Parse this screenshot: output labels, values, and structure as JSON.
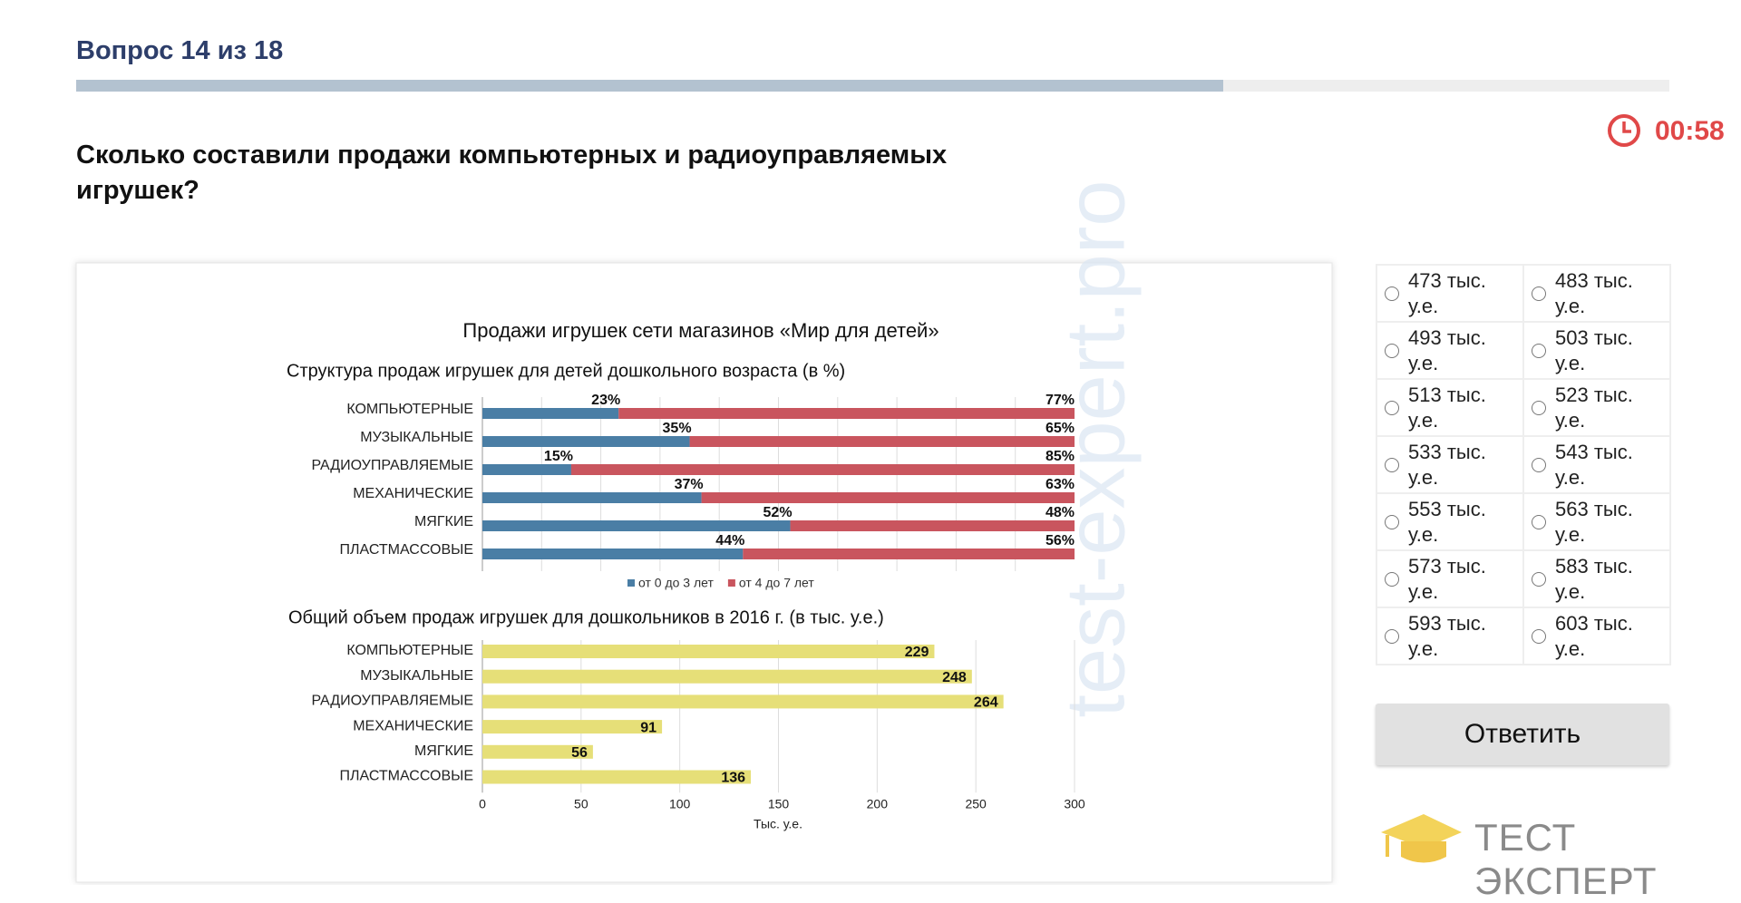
{
  "header": {
    "title": "Вопрос 14 из 18"
  },
  "timer": "00:58",
  "question": "Сколько составили продажи компьютерных и радиоуправляемых игрушек?",
  "watermark": "test-expert.pro",
  "chart_data": [
    {
      "type": "stacked-bar-horizontal",
      "title": "Продажи игрушек сети магазинов «Мир для детей»",
      "subtitle": "Структура продаж игрушек для детей дошкольного возраста (в %)",
      "categories": [
        "КОМПЬЮТЕРНЫЕ",
        "МУЗЫКАЛЬНЫЕ",
        "РАДИОУПРАВЛЯЕМЫЕ",
        "МЕХАНИЧЕСКИЕ",
        "МЯГКИЕ",
        "ПЛАСТМАССОВЫЕ"
      ],
      "series": [
        {
          "name": "от 0 до 3 лет",
          "color": "#4a7ea5",
          "values": [
            23,
            35,
            15,
            37,
            52,
            44
          ],
          "value_labels": [
            "23%",
            "35%",
            "15%",
            "37%",
            "52%",
            "44%"
          ]
        },
        {
          "name": "от 4 до 7 лет",
          "color": "#c9555e",
          "values": [
            77,
            65,
            85,
            63,
            48,
            56
          ],
          "value_labels": [
            "77%",
            "65%",
            "85%",
            "63%",
            "48%",
            "56%"
          ]
        }
      ],
      "xlim": [
        0,
        100
      ]
    },
    {
      "type": "bar-horizontal",
      "title": "Общий объем продаж игрушек для дошкольников в 2016 г. (в тыс. у.е.)",
      "categories": [
        "КОМПЬЮТЕРНЫЕ",
        "МУЗЫКАЛЬНЫЕ",
        "РАДИОУПРАВЛЯЕМЫЕ",
        "МЕХАНИЧЕСКИЕ",
        "МЯГКИЕ",
        "ПЛАСТМАССОВЫЕ"
      ],
      "values": [
        229,
        248,
        264,
        91,
        56,
        136
      ],
      "color": "#e6df78",
      "xlim": [
        0,
        300
      ],
      "xticks": [
        0,
        50,
        100,
        150,
        200,
        250,
        300
      ],
      "xlabel": "Тыс. у.е.",
      "grid": true
    }
  ],
  "options": [
    "473 тыс. у.е.",
    "483 тыс. у.е.",
    "493 тыс. у.е.",
    "503 тыс. у.е.",
    "513 тыс. у.е.",
    "523 тыс. у.е.",
    "533 тыс. у.е.",
    "543 тыс. у.е.",
    "553 тыс. у.е.",
    "563 тыс. у.е.",
    "573 тыс. у.е.",
    "583 тыс. у.е.",
    "593 тыс. у.е.",
    "603 тыс. у.е."
  ],
  "button": "Ответить",
  "logo": "ТЕСТ ЭКСПЕРТ"
}
